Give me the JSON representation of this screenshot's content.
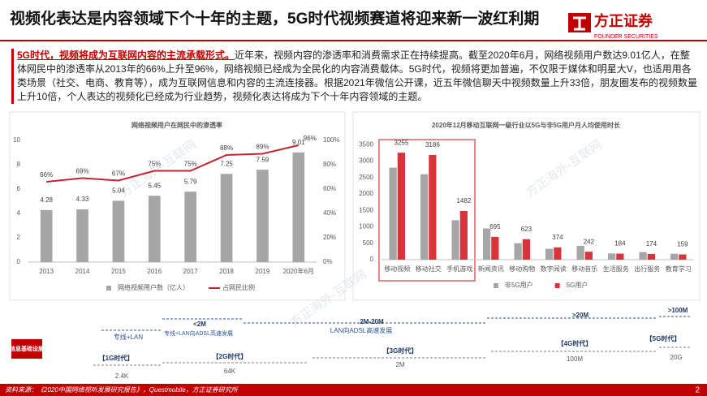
{
  "header": {
    "title": "视频化表达是内容领域下个十年的主题，5G时代视频赛道将迎来新一波红利期",
    "logo": "方正证券",
    "logo_en": "FOUNDER SECURITIES"
  },
  "paragraph": {
    "lead": "5G时代，视频将成为互联网内容的主流承载形式。",
    "body": "近年来，视频内容的渗透率和消费需求正在持续提高。截至2020年6月，网络视频用户数达9.01亿人，在整体网民中的渗透率从2013年的66%上升至96%，网络视频已经成为全民化的内容消费载体。5G时代，视频将更加普遍，不仅限于媒体和明星大V，也适用用各类场景（社交、电商、教育等），成为互联网信息和内容的主流连接器。根据2021年微信公开课，近五年微信聊天中视频数量上升33倍，朋友圈发布的视频数量上升10倍，个人表达的视频化已经成为行业趋势，视频化表达将成为下个十年内容领域的主题。"
  },
  "chart_data": [
    {
      "type": "bar",
      "title": "网络视频用户在网民中的渗透率",
      "categories": [
        "2013",
        "2014",
        "2015",
        "2016",
        "2017",
        "2018",
        "2019",
        "2020年6月"
      ],
      "series": [
        {
          "name": "网络视频用户数（亿人）",
          "color": "#a6a6a6",
          "show_labels": true,
          "values": [
            4.28,
            4.33,
            5.04,
            5.45,
            5.79,
            7.25,
            7.59,
            9.01
          ]
        },
        {
          "name": "占网民比例",
          "type": "line",
          "axis": "y2",
          "color": "#c0282d",
          "values": [
            66,
            69,
            67,
            75,
            75,
            88,
            89,
            96
          ],
          "value_labels": [
            "66%",
            "69%",
            "67%",
            "75%",
            "75%",
            "88%",
            "89%",
            "96%"
          ]
        }
      ],
      "ylim": [
        0,
        10
      ],
      "yticks": [
        0,
        2,
        4,
        6,
        8,
        10
      ],
      "y2lim": [
        0,
        100
      ],
      "y2ticks": [
        {
          "value": 0,
          "label": "0%"
        },
        {
          "value": 20,
          "label": "20%"
        },
        {
          "value": 40,
          "label": "40%"
        },
        {
          "value": 60,
          "label": "60%"
        },
        {
          "value": 80,
          "label": "80%"
        },
        {
          "value": 100,
          "label": "100%"
        }
      ],
      "grid": false
    },
    {
      "type": "bar",
      "title": "2020年12月移动互联网一级行业以5G与非5G用户月人均使用时长",
      "categories": [
        "移动视频",
        "移动社交",
        "手机游戏",
        "新闻资讯",
        "移动购物",
        "数字阅读",
        "移动音乐",
        "生活服务",
        "出行服务",
        "教育学习"
      ],
      "series": [
        {
          "name": "非5G用户",
          "color": "#a6a6a6",
          "values": [
            2800,
            2600,
            1200,
            950,
            500,
            330,
            420,
            190,
            230,
            180
          ]
        },
        {
          "name": "5G用户",
          "color": "#d9343a",
          "show_labels": true,
          "values": [
            3255,
            3186,
            1482,
            695,
            623,
            374,
            242,
            184,
            174,
            159
          ]
        }
      ],
      "ylim": [
        0,
        4000
      ],
      "yticks": [
        0,
        500,
        1000,
        1500,
        2000,
        2500,
        3000,
        3500
      ],
      "grid": false
    }
  ],
  "timeline": {
    "label": "信息基础设施",
    "watermark": "方正海外-互联网",
    "speeds": [
      "专线+LAN",
      "<2M",
      "专线+LAN向ADSL高速发展",
      "2M-20M",
      "LAN向ADSL高速发展",
      ">20M",
      ">100M"
    ],
    "generations": [
      {
        "name": "【1G时代】",
        "speed": "2.4K"
      },
      {
        "name": "【2G时代】",
        "speed": "64K"
      },
      {
        "name": "【3G时代】",
        "speed": "2M"
      },
      {
        "name": "【4G时代】",
        "speed": "100M"
      },
      {
        "name": "【5G时代】",
        "speed": "20G"
      }
    ]
  },
  "footer": {
    "source": "资料来源：《2020中国网络视听发展研究报告》，Questmobile，方正证券研究所",
    "page": "2"
  }
}
